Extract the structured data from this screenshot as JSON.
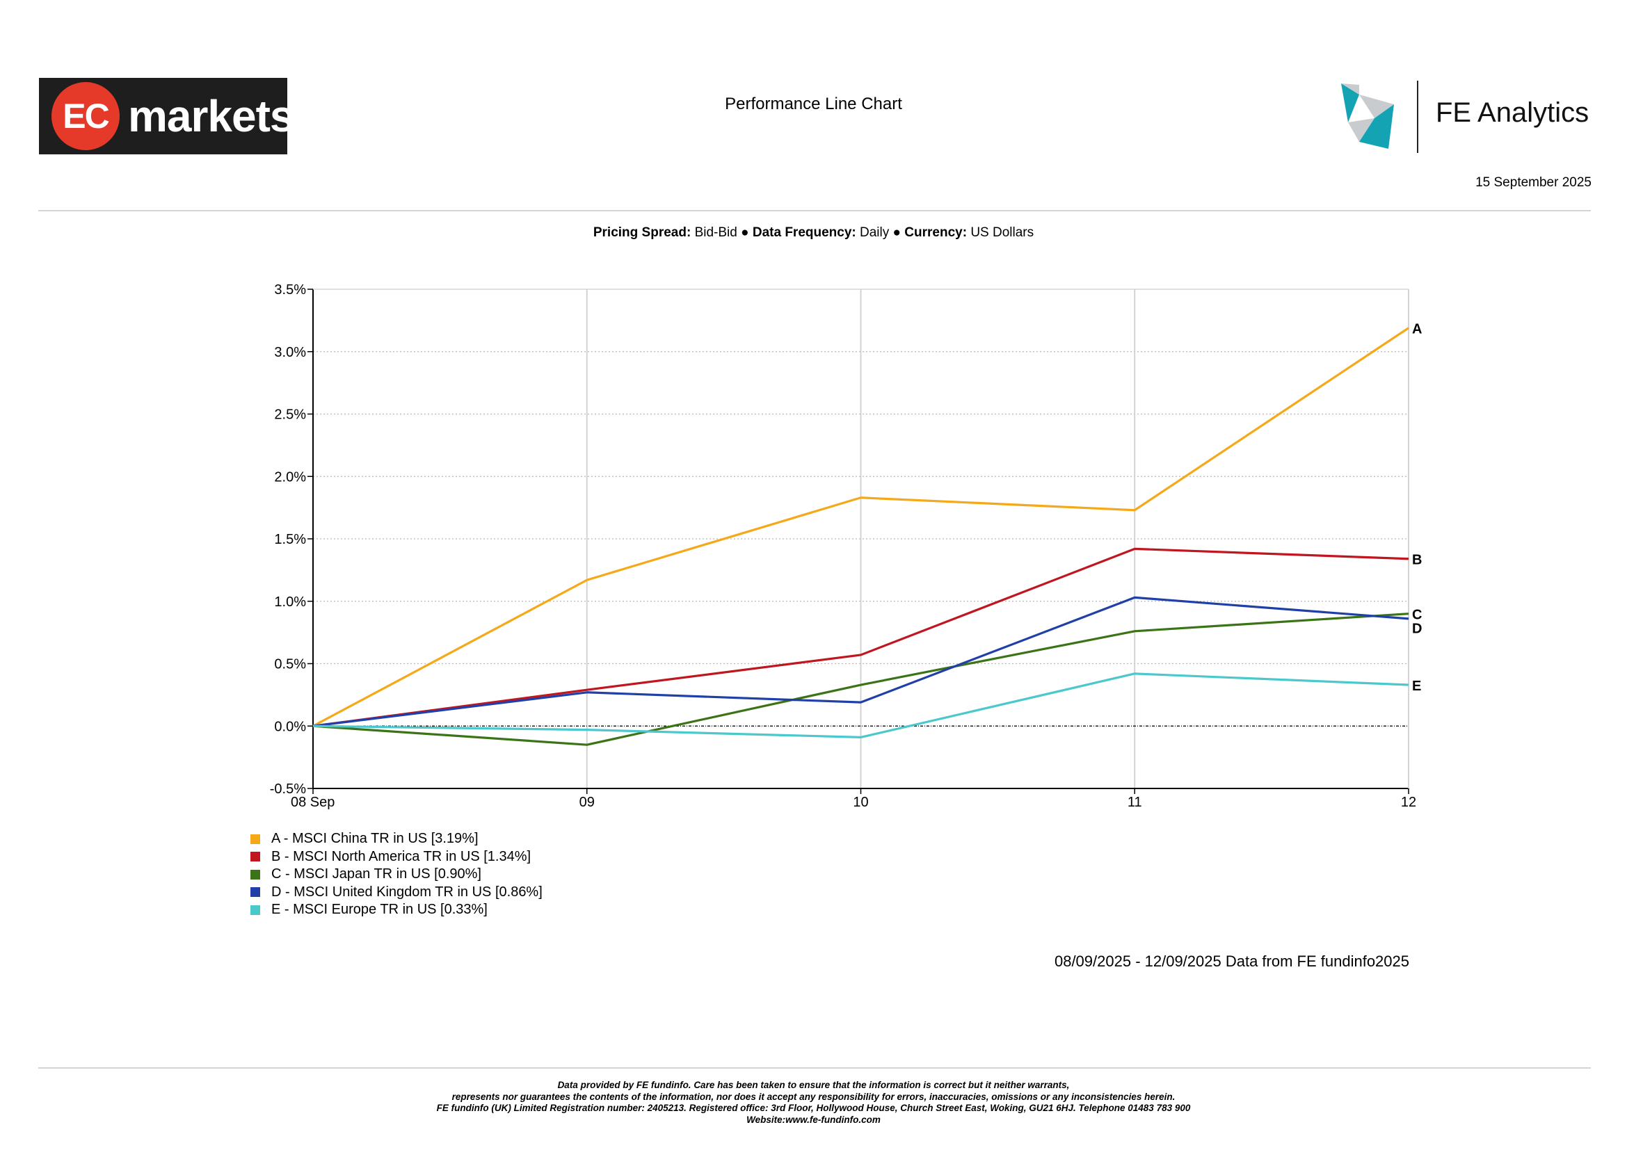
{
  "header": {
    "brand_mark": "EC",
    "brand_word": "markets",
    "title": "Performance Line Chart",
    "provider_name": "FE Analytics",
    "date": "15 September 2025"
  },
  "settings": {
    "pricing_spread_label": "Pricing Spread:",
    "pricing_spread_value": "Bid-Bid",
    "frequency_label": "Data Frequency:",
    "frequency_value": "Daily",
    "currency_label": "Currency:",
    "currency_value": "US Dollars",
    "separator": "●"
  },
  "colors": {
    "ec_red": "#e53a2a",
    "ec_dark": "#1e1e1e",
    "fe_teal": "#14a3b3",
    "fe_grey": "#c9ccce"
  },
  "chart_data": {
    "type": "line",
    "x": [
      "08 Sep",
      "09",
      "10",
      "11",
      "12"
    ],
    "y_ticks": [
      "3.5%",
      "3.0%",
      "2.5%",
      "2.0%",
      "1.5%",
      "1.0%",
      "0.5%",
      "0.0%",
      "-0.5%"
    ],
    "ylim": [
      -0.5,
      3.5
    ],
    "y_unit": "%",
    "grid": true,
    "zero_line": true,
    "series": [
      {
        "id": "A",
        "name": "A - MSCI China TR in US [3.19%]",
        "color": "#f5a818",
        "values": [
          0.0,
          1.17,
          1.83,
          1.73,
          3.19
        ]
      },
      {
        "id": "B",
        "name": "B - MSCI North America TR in US [1.34%]",
        "color": "#c0161f",
        "values": [
          0.0,
          0.29,
          0.57,
          1.42,
          1.34
        ]
      },
      {
        "id": "C",
        "name": "C - MSCI Japan TR in US [0.90%]",
        "color": "#3a7416",
        "values": [
          0.0,
          -0.15,
          0.33,
          0.76,
          0.9
        ]
      },
      {
        "id": "D",
        "name": "D - MSCI United Kingdom TR in US [0.86%]",
        "color": "#2040a8",
        "values": [
          0.0,
          0.27,
          0.19,
          1.03,
          0.86
        ]
      },
      {
        "id": "E",
        "name": "E - MSCI Europe TR in US [0.33%]",
        "color": "#4ac8cc",
        "values": [
          0.0,
          -0.03,
          -0.09,
          0.42,
          0.33
        ]
      }
    ],
    "legend_position": "bottom-left",
    "footnote": "08/09/2025 - 12/09/2025 Data from FE fundinfo2025"
  },
  "disclaimer": [
    "Data provided by FE fundinfo. Care has been taken to ensure that the information is correct but it neither warrants,",
    "represents nor guarantees the contents of the information, nor does it accept any responsibility for errors, inaccuracies, omissions or any inconsistencies herein.",
    "FE fundinfo (UK) Limited Registration number: 2405213. Registered office: 3rd Floor, Hollywood House, Church Street East, Woking, GU21 6HJ. Telephone 01483 783 900",
    "Website:www.fe-fundinfo.com"
  ]
}
